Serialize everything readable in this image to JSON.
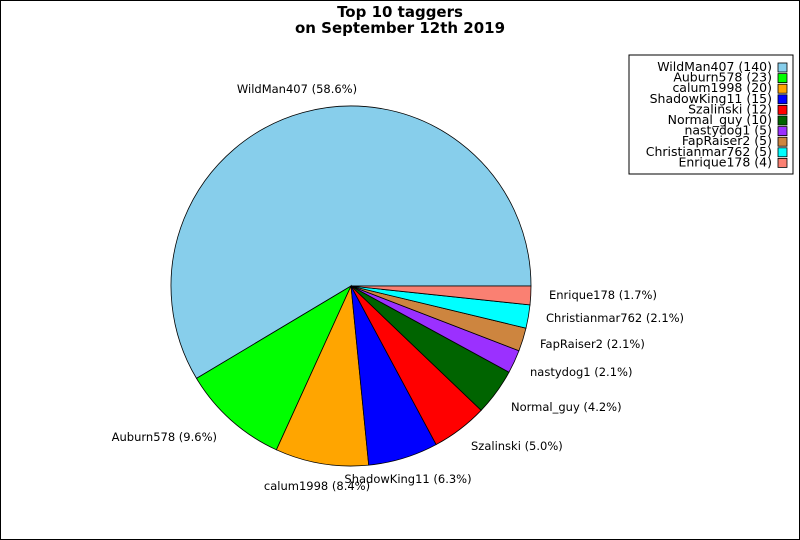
{
  "chart_data": {
    "type": "pie",
    "title_lines": [
      "Top 10 taggers",
      "on September 12th 2019"
    ],
    "slices": [
      {
        "name": "WildMan407",
        "value": 140,
        "percent_label": "WildMan407 (58.6%)",
        "legend_label": "WildMan407 (140)",
        "color": "#87CEEB"
      },
      {
        "name": "Auburn578",
        "value": 23,
        "percent_label": "Auburn578 (9.6%)",
        "legend_label": "Auburn578 (23)",
        "color": "#00FF00"
      },
      {
        "name": "calum1998",
        "value": 20,
        "percent_label": "calum1998 (8.4%)",
        "legend_label": "calum1998 (20)",
        "color": "#FFA500"
      },
      {
        "name": "ShadowKing11",
        "value": 15,
        "percent_label": "ShadowKing11 (6.3%)",
        "legend_label": "ShadowKing11 (15)",
        "color": "#0000FF"
      },
      {
        "name": "Szalinski",
        "value": 12,
        "percent_label": "Szalinski (5.0%)",
        "legend_label": "Szalinski (12)",
        "color": "#FF0000"
      },
      {
        "name": "Normal_guy",
        "value": 10,
        "percent_label": "Normal_guy (4.2%)",
        "legend_label": "Normal_guy (10)",
        "color": "#006400"
      },
      {
        "name": "nastydog1",
        "value": 5,
        "percent_label": "nastydog1 (2.1%)",
        "legend_label": "nastydog1 (5)",
        "color": "#9B30FF"
      },
      {
        "name": "FapRaiser2",
        "value": 5,
        "percent_label": "FapRaiser2 (2.1%)",
        "legend_label": "FapRaiser2 (5)",
        "color": "#CD853F"
      },
      {
        "name": "Christianmar762",
        "value": 5,
        "percent_label": "Christianmar762 (2.1%)",
        "legend_label": "Christianmar762 (5)",
        "color": "#00FFFF"
      },
      {
        "name": "Enrique178",
        "value": 4,
        "percent_label": "Enrique178 (1.7%)",
        "legend_label": "Enrique178 (4)",
        "color": "#FA8072"
      }
    ],
    "start_angle": "3 o'clock",
    "direction": "counter-clockwise",
    "legend_position": "top-right"
  }
}
